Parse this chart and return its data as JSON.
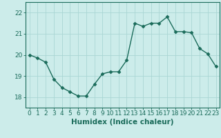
{
  "x": [
    0,
    1,
    2,
    3,
    4,
    5,
    6,
    7,
    8,
    9,
    10,
    11,
    12,
    13,
    14,
    15,
    16,
    17,
    18,
    19,
    20,
    21,
    22,
    23
  ],
  "y": [
    20.0,
    19.85,
    19.65,
    18.85,
    18.45,
    18.25,
    18.05,
    18.05,
    18.6,
    19.1,
    19.2,
    19.2,
    19.75,
    21.5,
    21.35,
    21.5,
    21.5,
    21.8,
    21.1,
    21.1,
    21.05,
    20.3,
    20.05,
    19.45
  ],
  "line_color": "#1a6b5a",
  "marker": "D",
  "marker_size": 2.5,
  "bg_color": "#ccecea",
  "grid_color": "#aad6d4",
  "title": "",
  "xlabel": "Humidex (Indice chaleur)",
  "ylabel": "",
  "ylim": [
    17.5,
    22.5
  ],
  "xlim": [
    -0.5,
    23.5
  ],
  "yticks": [
    18,
    19,
    20,
    21,
    22
  ],
  "xticks": [
    0,
    1,
    2,
    3,
    4,
    5,
    6,
    7,
    8,
    9,
    10,
    11,
    12,
    13,
    14,
    15,
    16,
    17,
    18,
    19,
    20,
    21,
    22,
    23
  ],
  "xtick_labels": [
    "0",
    "1",
    "2",
    "3",
    "4",
    "5",
    "6",
    "7",
    "8",
    "9",
    "10",
    "11",
    "12",
    "13",
    "14",
    "15",
    "16",
    "17",
    "18",
    "19",
    "20",
    "21",
    "22",
    "23"
  ],
  "tick_color": "#1a6b5a",
  "axis_color": "#1a6b5a",
  "xlabel_fontsize": 7.5,
  "tick_fontsize": 6.5,
  "linewidth": 1.0
}
